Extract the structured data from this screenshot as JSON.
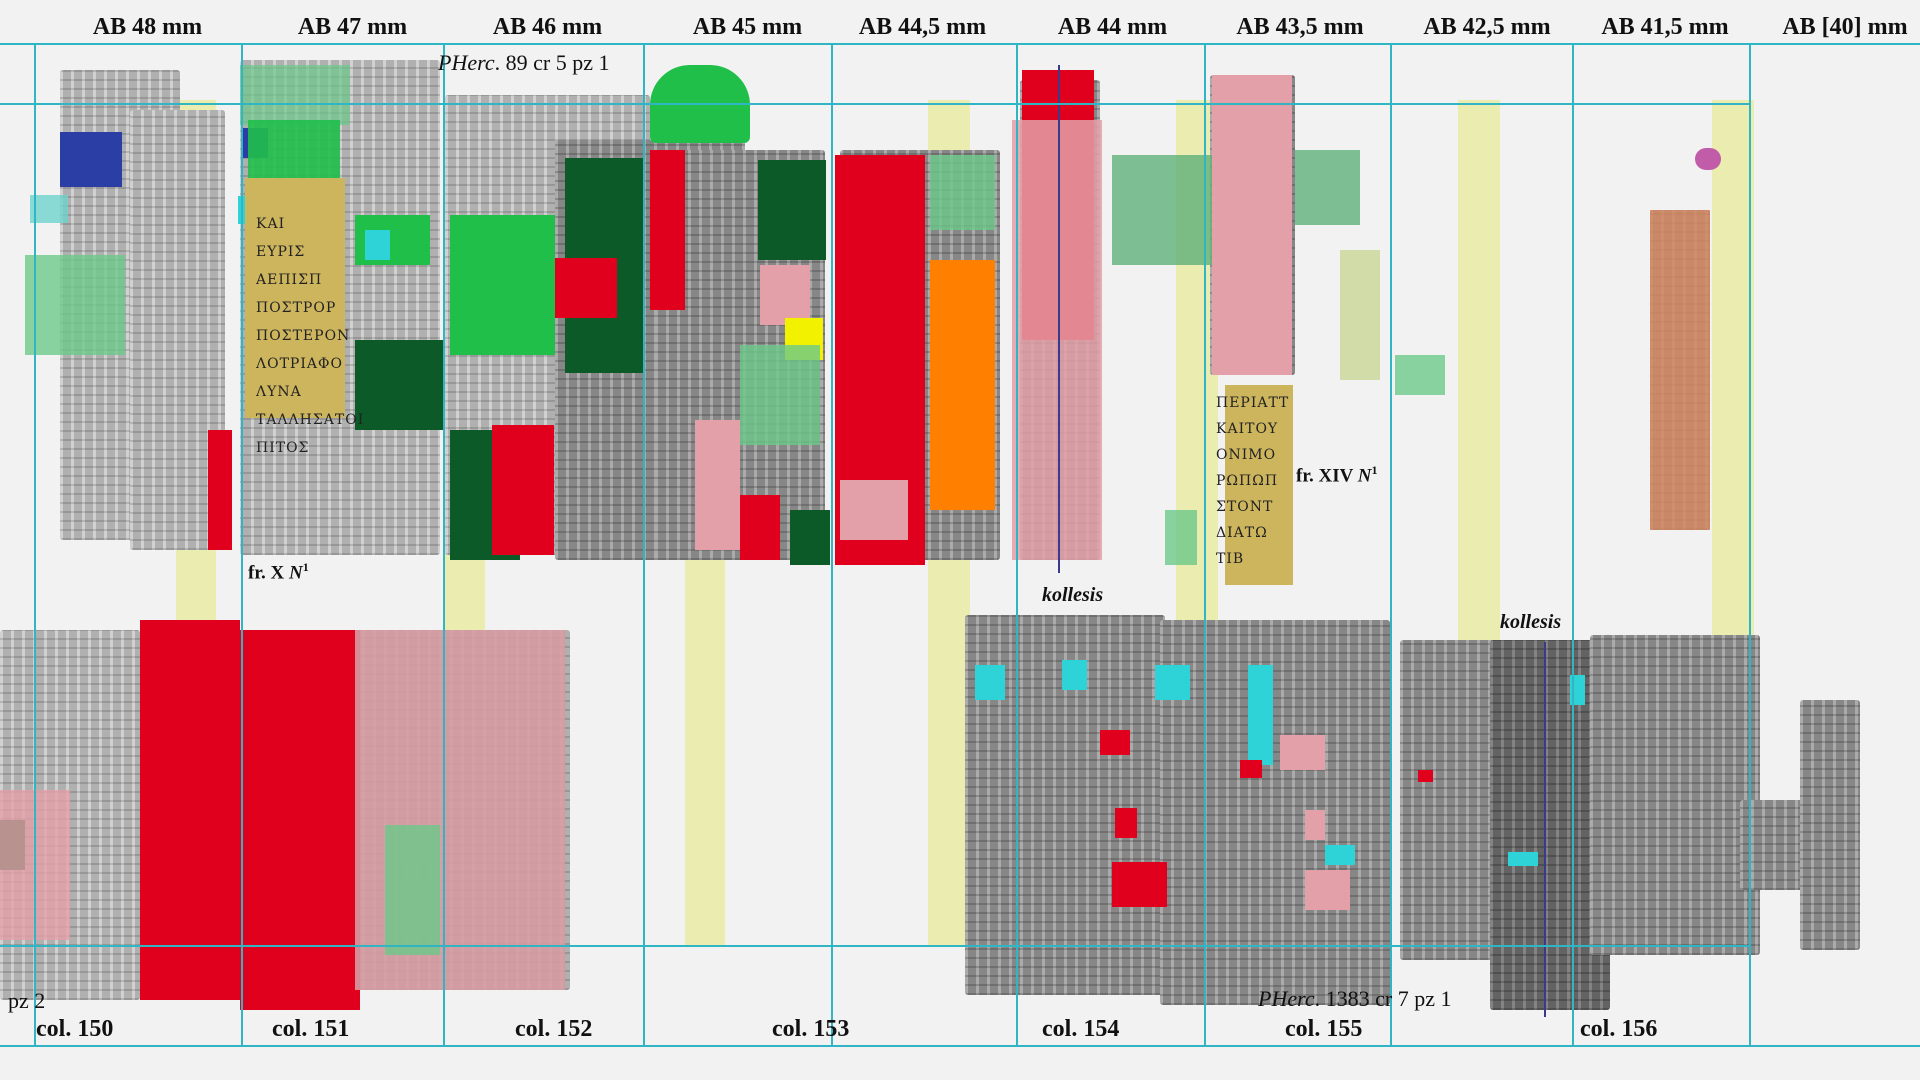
{
  "headers": [
    "AB 48 mm",
    "AB 47 mm",
    "AB 46 mm",
    "AB 45 mm",
    "AB 44,5 mm",
    "AB 44 mm",
    "AB 43,5 mm",
    "AB 42,5 mm",
    "AB 41,5 mm",
    "AB [40] mm"
  ],
  "columns": [
    "col. 150",
    "col. 151",
    "col. 152",
    "col. 153",
    "col. 154",
    "col. 155",
    "col. 156"
  ],
  "notes": {
    "top_source_italic": "PHerc",
    "top_source_rest": ". 89 cr 5 pz 1",
    "bottom_source_italic": "PHerc",
    "bottom_source_rest": ". 1383 cr 7 pz 1",
    "left_fragment_label": "pz 2",
    "frag_x": "fr. X ",
    "frag_x_siglum": "N",
    "frag_x_sup": "1",
    "frag_xiv": "fr. XIV ",
    "frag_xiv_siglum": "N",
    "frag_xiv_sup": "1",
    "kollesis_1": "kollesis",
    "kollesis_2": "kollesis"
  },
  "greek_text_1": [
    "ΚΑΙ",
    "ΕΥΡΙΣ",
    "ΑΕΠΙΣΠ",
    "ΠΟΣΤΡΟΡ",
    "ΠΟΣΤΕΡΟΝ",
    "ΛΟΤΡΙΑΦΟ",
    "ΛΥΝΑ",
    "ΤΑΛΛΗΣΑΤΟΙ",
    "ΠΙΤΟΣ"
  ],
  "greek_text_2": [
    "ΠΕΡΙΑΤΤ",
    "ΚΑΙΤΟΥ",
    "ΟΝΙΜΟ",
    "ΡΩΠΩΠ",
    "ΣΤΟΝΤ",
    "ΔΙΑΤΩ",
    "ΤΙΒ"
  ],
  "colors": {
    "grid_line": "#2fb5c4",
    "red": "#e0001e",
    "dark_green": "#0b5a28",
    "green": "#1fbf4a",
    "light_green": "#6cc98a",
    "pink": "#e3a0a8",
    "cyan": "#2ed3d8",
    "orange": "#ff7f00",
    "yellow": "#f2f200",
    "tan": "#cdb55d",
    "blue": "#2b3ea6",
    "band": "#e8ea7a"
  }
}
